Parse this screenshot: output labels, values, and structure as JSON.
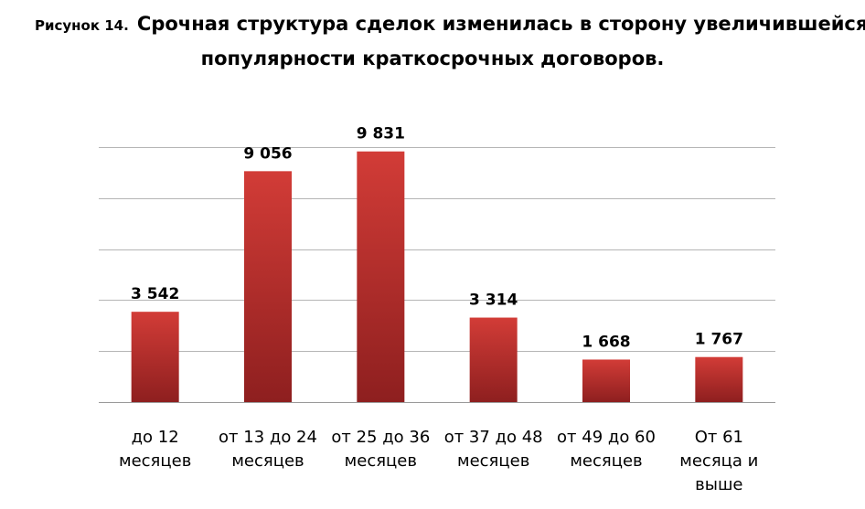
{
  "title": {
    "figure_label": "Рисунок 14.",
    "line1": "Срочная структура сделок изменилась в сторону увеличившейся",
    "line2": "популярности краткосрочных договоров."
  },
  "chart_data": {
    "type": "bar",
    "categories": [
      [
        "до 12",
        "месяцев"
      ],
      [
        "от 13 до 24",
        "месяцев"
      ],
      [
        "от 25 до 36",
        "месяцев"
      ],
      [
        "от 37 до 48",
        "месяцев"
      ],
      [
        "от 49 до 60",
        "месяцев"
      ],
      [
        "От 61",
        "месяца и",
        "выше"
      ]
    ],
    "values": [
      3542,
      9056,
      9831,
      3314,
      1668,
      1767
    ],
    "value_labels": [
      "3 542",
      "9 056",
      "9 831",
      "3 314",
      "1 668",
      "1 767"
    ],
    "ylim": [
      0,
      10000
    ],
    "grid": true,
    "bar_color": "#c0302e"
  }
}
